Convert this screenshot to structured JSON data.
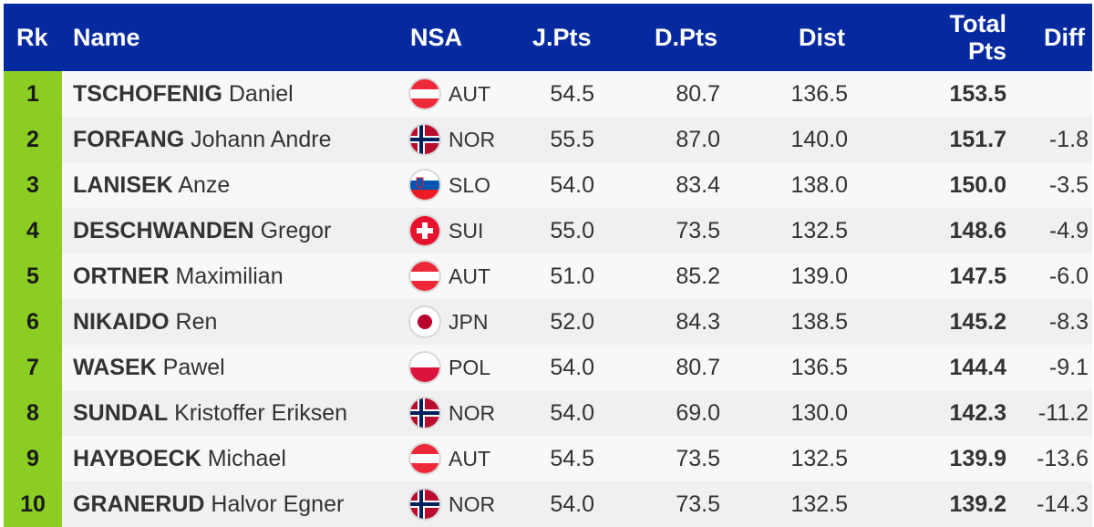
{
  "header": {
    "rk": "Rk",
    "name": "Name",
    "nsa": "NSA",
    "jpts": "J.Pts",
    "dpts": "D.Pts",
    "dist": "Dist",
    "total_line1": "Total",
    "total_line2": "Pts",
    "diff": "Diff"
  },
  "colors": {
    "header_bg": "#052aa0",
    "rank_bg": "#8ccd24"
  },
  "rows": [
    {
      "rk": "1",
      "last": "TSCHOFENIG",
      "first": "Daniel",
      "flag": "austria-flag-icon",
      "nsa": "AUT",
      "jpts": "54.5",
      "dpts": "80.7",
      "dist": "136.5",
      "total": "153.5",
      "diff": ""
    },
    {
      "rk": "2",
      "last": "FORFANG",
      "first": "Johann Andre",
      "flag": "norway-flag-icon",
      "nsa": "NOR",
      "jpts": "55.5",
      "dpts": "87.0",
      "dist": "140.0",
      "total": "151.7",
      "diff": "-1.8"
    },
    {
      "rk": "3",
      "last": "LANISEK",
      "first": "Anze",
      "flag": "slovenia-flag-icon",
      "nsa": "SLO",
      "jpts": "54.0",
      "dpts": "83.4",
      "dist": "138.0",
      "total": "150.0",
      "diff": "-3.5"
    },
    {
      "rk": "4",
      "last": "DESCHWANDEN",
      "first": "Gregor",
      "flag": "switzerland-flag-icon",
      "nsa": "SUI",
      "jpts": "55.0",
      "dpts": "73.5",
      "dist": "132.5",
      "total": "148.6",
      "diff": "-4.9"
    },
    {
      "rk": "5",
      "last": "ORTNER",
      "first": "Maximilian",
      "flag": "austria-flag-icon",
      "nsa": "AUT",
      "jpts": "51.0",
      "dpts": "85.2",
      "dist": "139.0",
      "total": "147.5",
      "diff": "-6.0"
    },
    {
      "rk": "6",
      "last": "NIKAIDO",
      "first": "Ren",
      "flag": "japan-flag-icon",
      "nsa": "JPN",
      "jpts": "52.0",
      "dpts": "84.3",
      "dist": "138.5",
      "total": "145.2",
      "diff": "-8.3"
    },
    {
      "rk": "7",
      "last": "WASEK",
      "first": "Pawel",
      "flag": "poland-flag-icon",
      "nsa": "POL",
      "jpts": "54.0",
      "dpts": "80.7",
      "dist": "136.5",
      "total": "144.4",
      "diff": "-9.1"
    },
    {
      "rk": "8",
      "last": "SUNDAL",
      "first": "Kristoffer Eriksen",
      "flag": "norway-flag-icon",
      "nsa": "NOR",
      "jpts": "54.0",
      "dpts": "69.0",
      "dist": "130.0",
      "total": "142.3",
      "diff": "-11.2"
    },
    {
      "rk": "9",
      "last": "HAYBOECK",
      "first": "Michael",
      "flag": "austria-flag-icon",
      "nsa": "AUT",
      "jpts": "54.5",
      "dpts": "73.5",
      "dist": "132.5",
      "total": "139.9",
      "diff": "-13.6"
    },
    {
      "rk": "10",
      "last": "GRANERUD",
      "first": "Halvor Egner",
      "flag": "norway-flag-icon",
      "nsa": "NOR",
      "jpts": "54.0",
      "dpts": "73.5",
      "dist": "132.5",
      "total": "139.2",
      "diff": "-14.3"
    }
  ]
}
